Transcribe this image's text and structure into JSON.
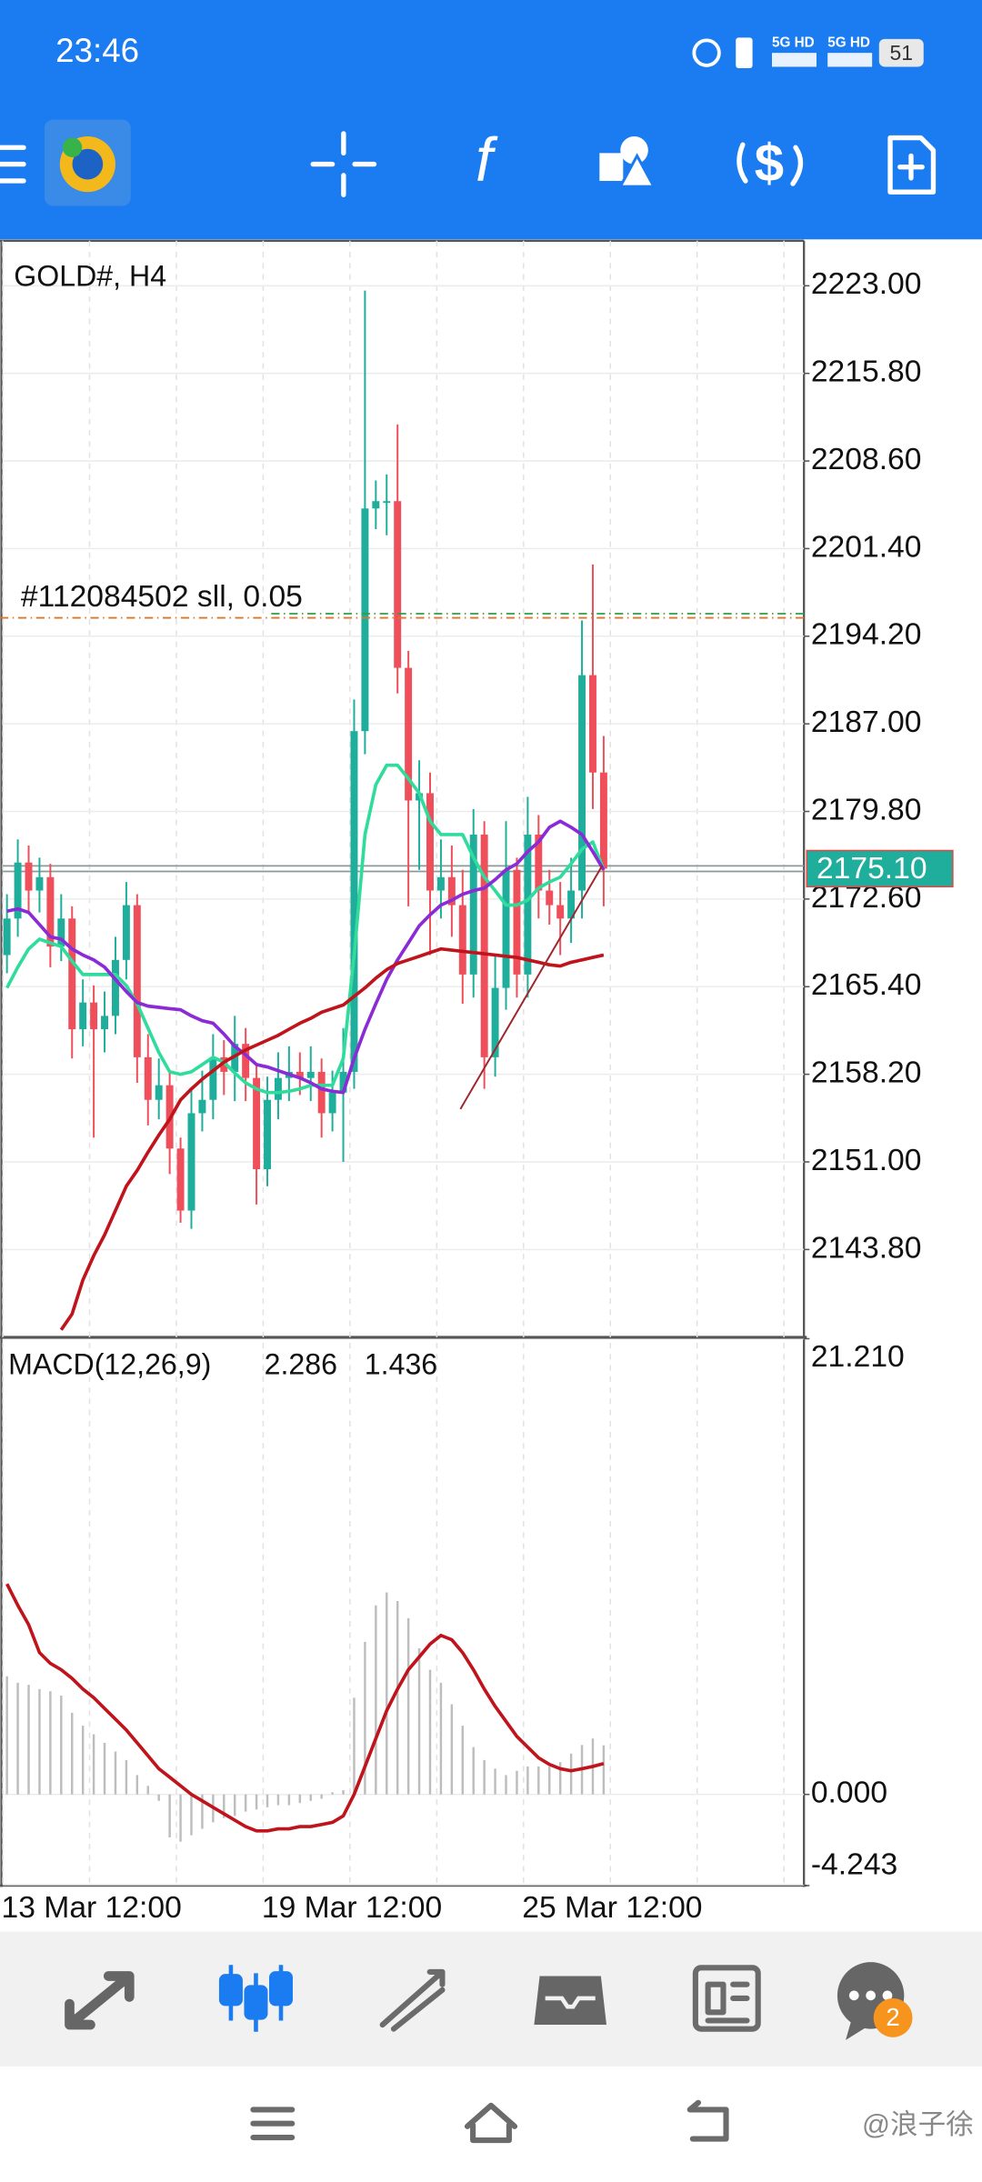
{
  "status_bar": {
    "time": "23:46",
    "network_1": "5G HD",
    "network_2": "5G HD",
    "battery": "51"
  },
  "chart_data": {
    "type": "candlestick",
    "title": "GOLD#, H4",
    "categories": [
      "13 Mar 12:00",
      null,
      null,
      null,
      null,
      null,
      null,
      null,
      null,
      null,
      null,
      null,
      null,
      null,
      null,
      null,
      null,
      null,
      null,
      null,
      null,
      null,
      null,
      null,
      "19 Mar 12:00",
      null,
      null,
      null,
      null,
      null,
      null,
      null,
      null,
      null,
      null,
      null,
      null,
      null,
      null,
      null,
      null,
      null,
      null,
      null,
      null,
      null,
      null,
      null,
      "25 Mar 12:00",
      null,
      null,
      null,
      null,
      null,
      null,
      null
    ],
    "open": [
      2168.0,
      2171.0,
      2175.6,
      2173.3,
      2174.4,
      2168.7,
      2171.0,
      2161.9,
      2164.1,
      2161.9,
      2163.0,
      2167.6,
      2172.1,
      2159.6,
      2156.1,
      2157.3,
      2152.1,
      2147.0,
      2155.0,
      2156.1,
      2159.6,
      2158.4,
      2160.7,
      2157.9,
      2150.4,
      2156.1,
      2157.9,
      2158.4,
      2157.9,
      2158.4,
      2155.0,
      2156.7,
      2158.4,
      2186.4,
      2204.7,
      2205.3,
      2205.3,
      2191.6,
      2180.7,
      2181.3,
      2173.3,
      2174.4,
      2172.1,
      2166.4,
      2177.9,
      2159.6,
      2165.3,
      2175.0,
      2166.4,
      2177.9,
      2173.3,
      2172.1,
      2171.0,
      2173.3,
      2191.0,
      2183.0
    ],
    "high": [
      2173.0,
      2177.5,
      2177.0,
      2176.0,
      2175.5,
      2173.0,
      2172.0,
      2166.0,
      2165.5,
      2165.0,
      2169.5,
      2174.0,
      2173.0,
      2161.5,
      2159.5,
      2158.5,
      2153.0,
      2157.0,
      2158.5,
      2161.5,
      2161.0,
      2163.0,
      2162.0,
      2159.0,
      2158.0,
      2160.0,
      2160.5,
      2160.0,
      2160.5,
      2159.5,
      2158.5,
      2162.0,
      2189.0,
      2222.6,
      2207.0,
      2207.5,
      2211.6,
      2193.0,
      2184.0,
      2183.0,
      2177.5,
      2177.0,
      2175.0,
      2180.0,
      2179.0,
      2168.0,
      2179.0,
      2176.0,
      2181.0,
      2179.5,
      2175.0,
      2174.0,
      2176.0,
      2195.5,
      2200.1,
      2186.0
    ],
    "low": [
      2166.5,
      2169.5,
      2171.5,
      2171.5,
      2167.0,
      2167.5,
      2159.5,
      2160.5,
      2153.0,
      2160.0,
      2161.5,
      2166.0,
      2157.5,
      2154.0,
      2154.5,
      2150.0,
      2146.0,
      2145.5,
      2153.5,
      2154.5,
      2156.5,
      2156.0,
      2156.0,
      2147.5,
      2149.0,
      2154.5,
      2156.0,
      2156.5,
      2156.0,
      2153.0,
      2153.5,
      2151.0,
      2157.0,
      2184.5,
      2203.0,
      2202.5,
      2189.5,
      2172.0,
      2175.0,
      2168.0,
      2171.0,
      2169.5,
      2164.0,
      2164.5,
      2157.0,
      2158.0,
      2163.5,
      2164.5,
      2164.5,
      2171.0,
      2170.5,
      2168.0,
      2169.0,
      2171.0,
      2180.0,
      2172.0
    ],
    "close": [
      2171.0,
      2175.6,
      2173.3,
      2174.4,
      2168.7,
      2171.0,
      2161.9,
      2164.1,
      2161.9,
      2163.0,
      2167.6,
      2172.1,
      2159.6,
      2156.1,
      2157.3,
      2152.1,
      2147.0,
      2155.0,
      2156.1,
      2159.6,
      2158.4,
      2160.7,
      2157.9,
      2150.4,
      2156.1,
      2157.9,
      2158.4,
      2157.9,
      2158.4,
      2155.0,
      2156.7,
      2158.4,
      2186.4,
      2204.7,
      2205.3,
      2205.3,
      2191.6,
      2180.7,
      2181.3,
      2173.3,
      2174.4,
      2172.1,
      2166.4,
      2177.9,
      2159.6,
      2165.3,
      2175.0,
      2166.4,
      2177.9,
      2173.3,
      2172.1,
      2171.0,
      2173.3,
      2191.0,
      2183.0,
      2175.1
    ],
    "up_color": "#1fae9b",
    "down_color": "#ef4f5a",
    "moving_averages": [
      {
        "color": "#2fdc9c",
        "values": [
          2165.3,
          2167.0,
          2168.5,
          2169.3,
          2169.0,
          2168.7,
          2167.5,
          2166.4,
          2166.4,
          2166.4,
          2166.4,
          2165.5,
          2164.0,
          2162.0,
          2160.0,
          2158.4,
          2158.2,
          2158.4,
          2159.0,
          2159.6,
          2159.2,
          2158.3,
          2157.5,
          2157.0,
          2156.7,
          2156.7,
          2156.8,
          2157.0,
          2157.3,
          2157.3,
          2157.3,
          2159.5,
          2168.0,
          2177.9,
          2182.0,
          2183.6,
          2183.6,
          2182.5,
          2181.3,
          2179.0,
          2177.9,
          2177.9,
          2177.9,
          2176.0,
          2174.4,
          2173.3,
          2172.1,
          2172.1,
          2172.5,
          2173.5,
          2174.0,
          2174.4,
          2175.5,
          2176.7,
          2177.3,
          2175.0
        ]
      },
      {
        "color": "#8a2bd6",
        "values": [
          2171.6,
          2171.8,
          2171.5,
          2170.5,
          2169.5,
          2169.3,
          2168.5,
          2168.0,
          2167.6,
          2167.0,
          2166.0,
          2165.0,
          2164.1,
          2163.8,
          2163.7,
          2163.6,
          2163.5,
          2163.0,
          2162.6,
          2162.4,
          2161.5,
          2160.5,
          2159.8,
          2159.0,
          2158.8,
          2158.5,
          2158.2,
          2157.9,
          2157.5,
          2157.0,
          2156.8,
          2156.7,
          2159.5,
          2161.9,
          2164.0,
          2166.0,
          2167.6,
          2169.0,
          2170.4,
          2171.3,
          2172.1,
          2172.5,
          2173.0,
          2173.3,
          2173.5,
          2174.2,
          2175.0,
          2175.5,
          2176.5,
          2177.3,
          2178.5,
          2179.0,
          2178.5,
          2177.9,
          2176.5,
          2175.0
        ]
      },
      {
        "color": "#c0141c",
        "values": [
          null,
          null,
          null,
          null,
          null,
          2137.2,
          2138.5,
          2141.3,
          2143.3,
          2145.0,
          2147.0,
          2149.0,
          2150.3,
          2151.8,
          2153.2,
          2154.5,
          2156.1,
          2157.0,
          2157.8,
          2158.5,
          2159.2,
          2159.7,
          2160.2,
          2160.6,
          2161.0,
          2161.4,
          2161.9,
          2162.4,
          2162.8,
          2163.3,
          2163.6,
          2163.9,
          2164.6,
          2165.3,
          2166.1,
          2166.8,
          2167.3,
          2167.6,
          2167.9,
          2168.2,
          2168.5,
          2168.4,
          2168.3,
          2168.2,
          2168.1,
          2168.0,
          2167.9,
          2167.8,
          2167.6,
          2167.4,
          2167.2,
          2167.1,
          2167.4,
          2167.6,
          2167.8,
          2168.0
        ]
      }
    ],
    "ylim": [
      2136.7,
      2226.7
    ],
    "yticks": [
      {
        "value": 2223,
        "label": "2223.00"
      },
      {
        "value": 2215.8,
        "label": "2215.80"
      },
      {
        "value": 2208.6,
        "label": "2208.60"
      },
      {
        "value": 2201.4,
        "label": "2201.40"
      },
      {
        "value": 2194.2,
        "label": "2194.20"
      },
      {
        "value": 2187,
        "label": "2187.00"
      },
      {
        "value": 2179.8,
        "label": "2179.80"
      },
      {
        "value": 2172.6,
        "label": "2172.60"
      },
      {
        "value": 2165.4,
        "label": "2165.40"
      },
      {
        "value": 2158.2,
        "label": "2158.20"
      },
      {
        "value": 2151,
        "label": "2151.00"
      },
      {
        "value": 2143.8,
        "label": "2143.80"
      }
    ],
    "current_price": {
      "value": 2175.1,
      "label": "2175.10"
    },
    "current_price_color": "#1fae9b",
    "order_label": "#112084502 sll, 0.05",
    "macd": {
      "title": "MACD(12,26,9)",
      "histogram": [
        5.5,
        5.2,
        5.1,
        4.9,
        4.8,
        4.6,
        3.8,
        3.2,
        2.8,
        2.4,
        2.0,
        1.6,
        0.9,
        0.4,
        -0.3,
        -2.0,
        -2.2,
        -1.9,
        -1.6,
        -1.3,
        -1.1,
        -1.0,
        -0.8,
        -0.7,
        -0.6,
        -0.5,
        -0.5,
        -0.4,
        -0.3,
        -0.2,
        0.1,
        0.2,
        4.5,
        7.1,
        8.8,
        9.4,
        9.0,
        8.2,
        6.8,
        5.8,
        5.2,
        4.2,
        3.2,
        2.2,
        1.6,
        1.2,
        0.9,
        1.1,
        1.3,
        1.3,
        1.3,
        1.5,
        1.9,
        2.3,
        2.6,
        2.286
      ],
      "signal": [
        9.8,
        8.8,
        7.9,
        6.6,
        6.1,
        5.8,
        5.4,
        4.9,
        4.5,
        4.0,
        3.5,
        3.0,
        2.4,
        1.8,
        1.2,
        0.8,
        0.4,
        0.0,
        -0.3,
        -0.6,
        -0.9,
        -1.2,
        -1.5,
        -1.7,
        -1.7,
        -1.6,
        -1.6,
        -1.5,
        -1.5,
        -1.4,
        -1.3,
        -1.0,
        0.0,
        1.3,
        2.6,
        3.9,
        4.9,
        5.8,
        6.4,
        7.0,
        7.4,
        7.2,
        6.6,
        5.8,
        4.9,
        4.1,
        3.4,
        2.7,
        2.2,
        1.7,
        1.4,
        1.2,
        1.1,
        1.2,
        1.3,
        1.436
      ],
      "histogram_color": "#bdbdbd",
      "signal_color": "#c0141c",
      "ylim": [
        -4.243,
        21.21
      ],
      "yticks": [
        {
          "value": 21.21,
          "label": "21.210"
        },
        {
          "value": 0,
          "label": "0.000"
        },
        {
          "value": -4.243,
          "label": "-4.243"
        }
      ]
    }
  },
  "bottom_nav": {
    "chat_badge": "2"
  },
  "watermark": "@浪子徐"
}
